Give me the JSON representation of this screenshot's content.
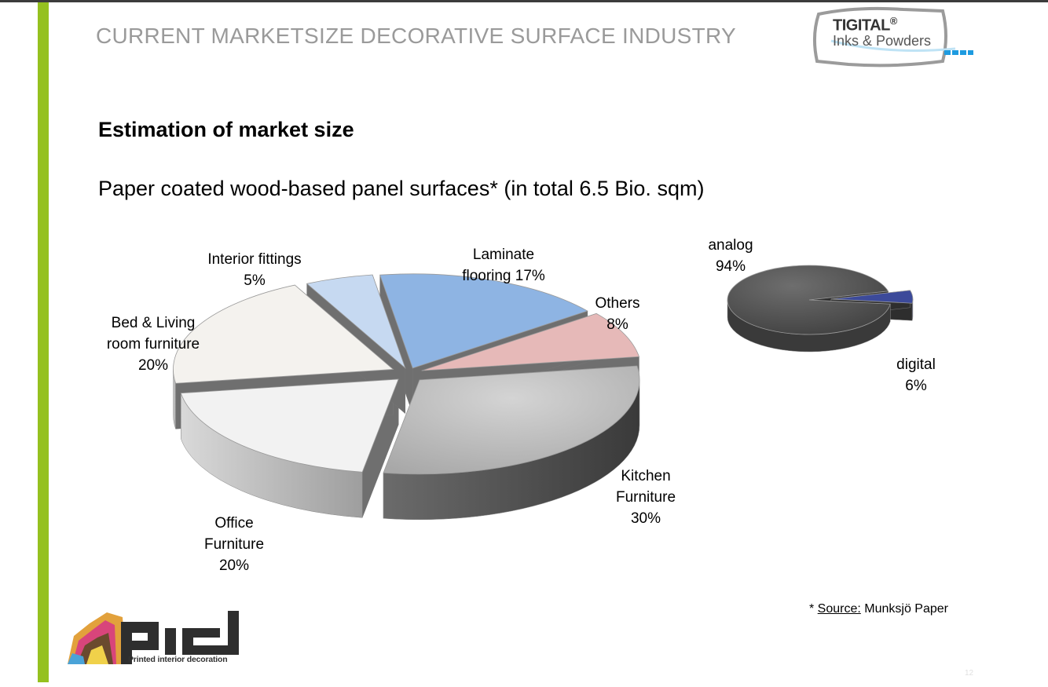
{
  "header": {
    "title": "CURRENT MARKETSIZE DECORATIVE SURFACE INDUSTRY",
    "logo": {
      "name": "TIGITAL",
      "mark": "®",
      "tagline": "Inks & Powders"
    }
  },
  "section_heading": "Estimation of market size",
  "chart_data": [
    {
      "type": "pie",
      "title": "Paper coated wood-based panel surfaces* (in total 6.5 Bio. sqm)",
      "style": "3d-exploded",
      "slices": [
        {
          "label_lines": [
            "Laminate",
            "flooring 17%"
          ],
          "value": 17,
          "color": "#8eb4e3"
        },
        {
          "label_lines": [
            "Others",
            "8%"
          ],
          "value": 8,
          "color": "#e6b9b8"
        },
        {
          "label_lines": [
            "Kitchen",
            "Furniture",
            "30%"
          ],
          "value": 30,
          "color": "#bdbdbd"
        },
        {
          "label_lines": [
            "Office",
            "Furniture",
            "20%"
          ],
          "value": 20,
          "color": "#f2f2f2"
        },
        {
          "label_lines": [
            "Bed & Living",
            "room furniture",
            "20%"
          ],
          "value": 20,
          "color": "#f4f2ee"
        },
        {
          "label_lines": [
            "Interior fittings",
            "5%"
          ],
          "value": 5,
          "color": "#c6d9f1"
        }
      ]
    },
    {
      "type": "pie",
      "title": "",
      "style": "3d-exploded",
      "slices": [
        {
          "label_lines": [
            "analog",
            "94%"
          ],
          "value": 94,
          "color": "#595959"
        },
        {
          "label_lines": [
            "digital",
            "6%"
          ],
          "value": 6,
          "color": "#3c4a9a"
        }
      ]
    }
  ],
  "footnote": {
    "marker": "* ",
    "source_label": "Source:",
    "source": " Munksjö Paper"
  },
  "page_number": "12",
  "footer_logo": {
    "mark": "pid",
    "tagline": "Printed interior decoration"
  }
}
